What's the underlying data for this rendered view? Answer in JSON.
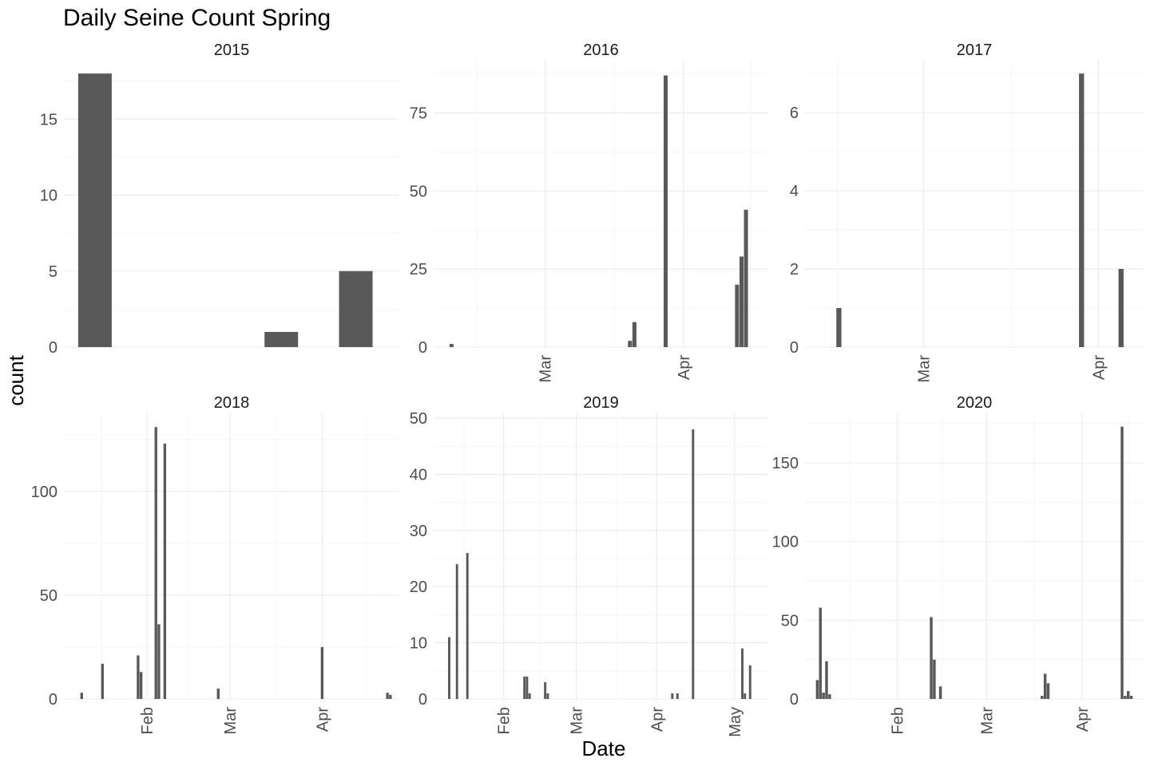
{
  "chart_data": {
    "type": "bar",
    "title": "Daily Seine Count Spring",
    "xlabel": "Date",
    "ylabel": "count",
    "grid": true,
    "facets": [
      {
        "strip": "2015",
        "x_tick_labels": [],
        "y_ticks": [
          0,
          5,
          10,
          15
        ],
        "ylim": [
          0,
          18.9
        ],
        "bars": [
          {
            "x": "2015-04-21",
            "y": 18
          },
          {
            "x": "2015-04-26",
            "y": 1
          },
          {
            "x": "2015-04-28",
            "y": 5
          }
        ]
      },
      {
        "strip": "2016",
        "x_tick_labels": [
          "Mar",
          "Apr"
        ],
        "y_ticks": [
          0,
          25,
          50,
          75
        ],
        "ylim": [
          0,
          92
        ],
        "bars": [
          {
            "x": "2016-02-09",
            "y": 1
          },
          {
            "x": "2016-03-20",
            "y": 2
          },
          {
            "x": "2016-03-21",
            "y": 8
          },
          {
            "x": "2016-03-28",
            "y": 87
          },
          {
            "x": "2016-04-13",
            "y": 20
          },
          {
            "x": "2016-04-14",
            "y": 29
          },
          {
            "x": "2016-04-15",
            "y": 44
          }
        ]
      },
      {
        "strip": "2017",
        "x_tick_labels": [
          "Mar",
          "Apr"
        ],
        "y_ticks": [
          0,
          2,
          4,
          6
        ],
        "ylim": [
          0,
          7.35
        ],
        "bars": [
          {
            "x": "2017-02-14",
            "y": 1
          },
          {
            "x": "2017-03-29",
            "y": 7
          },
          {
            "x": "2017-04-05",
            "y": 2
          }
        ]
      },
      {
        "strip": "2018",
        "x_tick_labels": [
          "Feb",
          "Mar",
          "Apr"
        ],
        "y_ticks": [
          0,
          50,
          100
        ],
        "ylim": [
          0,
          138
        ],
        "bars": [
          {
            "x": "2018-01-10",
            "y": 3
          },
          {
            "x": "2018-01-17",
            "y": 17
          },
          {
            "x": "2018-01-29",
            "y": 21
          },
          {
            "x": "2018-01-30",
            "y": 13
          },
          {
            "x": "2018-02-04",
            "y": 131
          },
          {
            "x": "2018-02-05",
            "y": 36
          },
          {
            "x": "2018-02-07",
            "y": 123
          },
          {
            "x": "2018-02-25",
            "y": 5
          },
          {
            "x": "2018-04-01",
            "y": 25
          },
          {
            "x": "2018-04-23",
            "y": 3
          },
          {
            "x": "2018-04-24",
            "y": 2
          }
        ]
      },
      {
        "strip": "2019",
        "x_tick_labels": [
          "Feb",
          "Mar",
          "Apr",
          "May"
        ],
        "y_ticks": [
          0,
          10,
          20,
          30,
          40,
          50
        ],
        "ylim": [
          0,
          51
        ],
        "bars": [
          {
            "x": "2019-01-11",
            "y": 11
          },
          {
            "x": "2019-01-14",
            "y": 24
          },
          {
            "x": "2019-01-18",
            "y": 26
          },
          {
            "x": "2019-02-09",
            "y": 4
          },
          {
            "x": "2019-02-10",
            "y": 4
          },
          {
            "x": "2019-02-11",
            "y": 1
          },
          {
            "x": "2019-02-17",
            "y": 3
          },
          {
            "x": "2019-02-18",
            "y": 1
          },
          {
            "x": "2019-04-07",
            "y": 1
          },
          {
            "x": "2019-04-09",
            "y": 1
          },
          {
            "x": "2019-04-15",
            "y": 48
          },
          {
            "x": "2019-05-04",
            "y": 9
          },
          {
            "x": "2019-05-05",
            "y": 1
          },
          {
            "x": "2019-05-07",
            "y": 6
          }
        ]
      },
      {
        "strip": "2020",
        "x_tick_labels": [
          "Feb",
          "Mar",
          "Apr"
        ],
        "y_ticks": [
          0,
          50,
          100,
          150
        ],
        "ylim": [
          0,
          182
        ],
        "bars": [
          {
            "x": "2020-01-06",
            "y": 12
          },
          {
            "x": "2020-01-07",
            "y": 58
          },
          {
            "x": "2020-01-08",
            "y": 4
          },
          {
            "x": "2020-01-09",
            "y": 24
          },
          {
            "x": "2020-01-10",
            "y": 3
          },
          {
            "x": "2020-02-12",
            "y": 52
          },
          {
            "x": "2020-02-13",
            "y": 25
          },
          {
            "x": "2020-02-15",
            "y": 8
          },
          {
            "x": "2020-03-19",
            "y": 2
          },
          {
            "x": "2020-03-20",
            "y": 16
          },
          {
            "x": "2020-03-21",
            "y": 10
          },
          {
            "x": "2020-04-14",
            "y": 173
          },
          {
            "x": "2020-04-15",
            "y": 2
          },
          {
            "x": "2020-04-16",
            "y": 5
          },
          {
            "x": "2020-04-17",
            "y": 2
          }
        ]
      }
    ]
  }
}
